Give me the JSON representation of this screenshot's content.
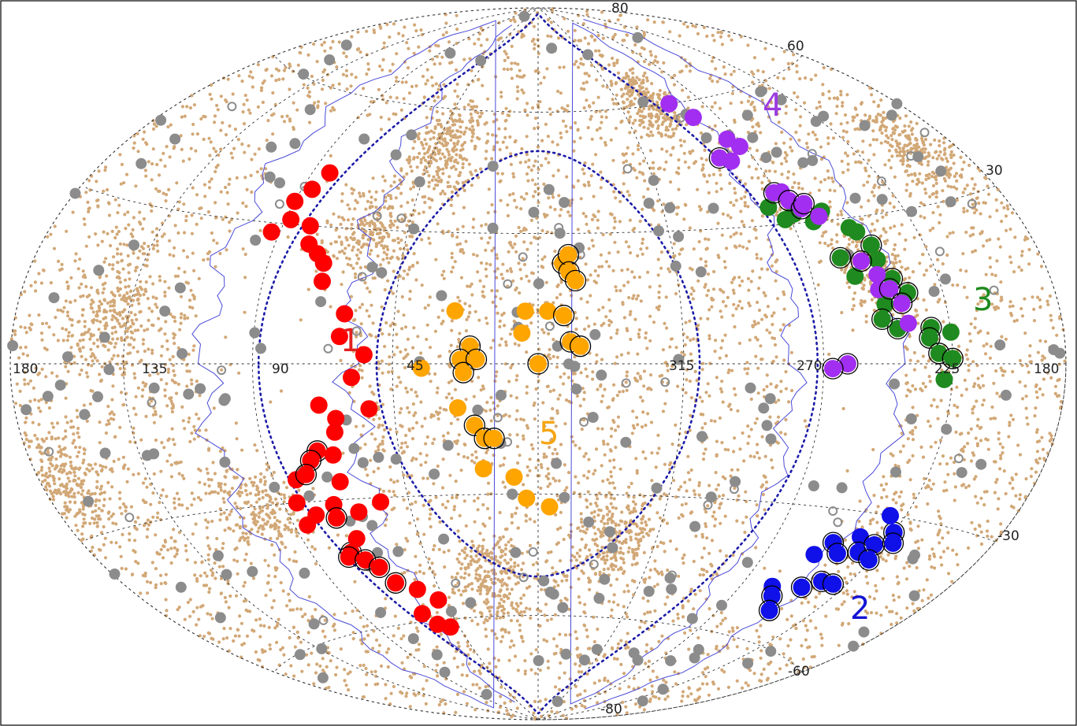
{
  "chart_data": {
    "type": "scatter",
    "projection": "hammer-aitoff-allsky",
    "grid": true,
    "longitude_labels": [
      "180",
      "135",
      "90",
      "45",
      "315",
      "270",
      "225",
      "180"
    ],
    "latitude_labels": [
      "80",
      "60",
      "30",
      "-30",
      "-60",
      "-80"
    ],
    "group_labels": [
      {
        "text": "1",
        "color": "#e0211e"
      },
      {
        "text": "2",
        "color": "#1414d2"
      },
      {
        "text": "3",
        "color": "#1f8a1f"
      },
      {
        "text": "4",
        "color": "#9b3ce0"
      },
      {
        "text": "5",
        "color": "#f5a613"
      }
    ],
    "colors": {
      "background_points": "#d2a877",
      "grey_points": "#8c8c8c",
      "outline": "#4a4ad8",
      "dotted_curve": "#1b1ba8",
      "grid": "#333333",
      "group_1": "#ff0000",
      "group_2": "#1010e8",
      "group_3": "#1f8a1f",
      "group_4": "#a12ef0",
      "group_5": "#ffa500"
    },
    "series": [
      {
        "group": "1",
        "points": [
          [
            83,
            42,
            0
          ],
          [
            86,
            38,
            0
          ],
          [
            90,
            35,
            0
          ],
          [
            88,
            31,
            0
          ],
          [
            93,
            28,
            0
          ],
          [
            80,
            30,
            0
          ],
          [
            78,
            26,
            0
          ],
          [
            74,
            24,
            0
          ],
          [
            71,
            22,
            0
          ],
          [
            70,
            18,
            0
          ],
          [
            61,
            11,
            0
          ],
          [
            62,
            6,
            0
          ],
          [
            54,
            2,
            0
          ],
          [
            58,
            -3,
            0
          ],
          [
            69,
            -9,
            0
          ],
          [
            64,
            -12,
            0
          ],
          [
            65,
            -15,
            0
          ],
          [
            72,
            -19,
            1
          ],
          [
            75,
            -21,
            1
          ],
          [
            67,
            -20,
            0
          ],
          [
            67,
            -26,
            0
          ],
          [
            72,
            -31,
            0
          ],
          [
            80,
            -33,
            0
          ],
          [
            85,
            -30,
            0
          ],
          [
            73,
            -34,
            1
          ],
          [
            64,
            -33,
            0
          ],
          [
            55,
            -31,
            0
          ],
          [
            74,
            -42,
            1
          ],
          [
            76,
            -43,
            1
          ],
          [
            70,
            -44,
            1
          ],
          [
            66,
            -46,
            1
          ],
          [
            63,
            -50,
            1
          ],
          [
            55,
            -52,
            0
          ],
          [
            60,
            -58,
            0
          ],
          [
            48,
            -55,
            0
          ],
          [
            56,
            -61,
            0
          ],
          [
            50,
            -62,
            0
          ],
          [
            82,
            -25,
            0
          ],
          [
            78,
            -24,
            1
          ],
          [
            85,
            -35,
            0
          ],
          [
            69,
            -39,
            0
          ],
          [
            53,
            -10,
            0
          ]
        ]
      },
      {
        "group": "2",
        "points": [
          [
            250,
            -40,
            0
          ],
          [
            246,
            -37,
            1
          ],
          [
            241,
            -39,
            1
          ],
          [
            237,
            -35,
            0
          ],
          [
            233,
            -38,
            1
          ],
          [
            229,
            -36,
            1
          ],
          [
            225,
            -33,
            1
          ],
          [
            222,
            -35,
            1
          ],
          [
            226,
            -39,
            1
          ],
          [
            237,
            -45,
            1
          ],
          [
            243,
            -47,
            1
          ],
          [
            256,
            -48,
            0
          ],
          [
            252,
            -50,
            1
          ],
          [
            246,
            -53,
            1
          ],
          [
            231,
            -45,
            1
          ],
          [
            231,
            -30,
            0
          ]
        ]
      },
      {
        "group": "3",
        "points": [
          [
            276,
            34,
            0
          ],
          [
            272,
            31,
            0
          ],
          [
            268,
            32,
            0
          ],
          [
            262,
            30,
            0
          ],
          [
            257,
            32,
            0
          ],
          [
            250,
            28,
            0
          ],
          [
            245,
            24,
            1
          ],
          [
            248,
            27,
            0
          ],
          [
            258,
            22,
            1
          ],
          [
            255,
            18,
            0
          ],
          [
            242,
            17,
            1
          ],
          [
            238,
            14,
            1
          ],
          [
            247,
            12,
            0
          ],
          [
            244,
            7,
            1
          ],
          [
            232,
            7,
            1
          ],
          [
            233,
            5,
            1
          ],
          [
            230,
            2,
            1
          ],
          [
            225,
            6,
            0
          ],
          [
            225,
            1,
            1
          ],
          [
            228,
            -3,
            0
          ],
          [
            249,
            9,
            1
          ],
          [
            245,
            21,
            0
          ]
        ]
      },
      {
        "group": "4",
        "points": [
          [
            288,
            60,
            0
          ],
          [
            282,
            56,
            0
          ],
          [
            275,
            50,
            0
          ],
          [
            272,
            48,
            0
          ],
          [
            284,
            46,
            1
          ],
          [
            280,
            45,
            0
          ],
          [
            271,
            37,
            1
          ],
          [
            268,
            37,
            0
          ],
          [
            267,
            35,
            1
          ],
          [
            264,
            33,
            1
          ],
          [
            262,
            34,
            1
          ],
          [
            259,
            31,
            0
          ],
          [
            251,
            21,
            1
          ],
          [
            247,
            18,
            0
          ],
          [
            248,
            15,
            0
          ],
          [
            244,
            15,
            1
          ],
          [
            241,
            12,
            1
          ],
          [
            240,
            8,
            0
          ],
          [
            262,
            0,
            1
          ],
          [
            267,
            -1,
            1
          ]
        ]
      },
      {
        "group": "5",
        "points": [
          [
            352,
            23,
            1
          ],
          [
            350,
            25,
            1
          ],
          [
            350,
            21,
            1
          ],
          [
            348,
            19,
            1
          ],
          [
            357,
            12,
            0
          ],
          [
            352,
            11,
            1
          ],
          [
            350,
            5,
            1
          ],
          [
            347,
            4,
            1
          ],
          [
            5,
            7,
            0
          ],
          [
            21,
            4,
            1
          ],
          [
            24,
            1,
            1
          ],
          [
            19,
            1,
            1
          ],
          [
            23,
            -2,
            1
          ],
          [
            0,
            0,
            1
          ],
          [
            36,
            -1,
            0
          ],
          [
            4,
            12,
            0
          ],
          [
            26,
            12,
            0
          ],
          [
            25,
            -10,
            0
          ],
          [
            20,
            -14,
            1
          ],
          [
            17,
            -17,
            1
          ],
          [
            14,
            -17,
            1
          ],
          [
            18,
            -24,
            0
          ],
          [
            8,
            -26,
            0
          ],
          [
            4,
            -31,
            0
          ],
          [
            356,
            -33,
            0
          ]
        ]
      }
    ]
  }
}
